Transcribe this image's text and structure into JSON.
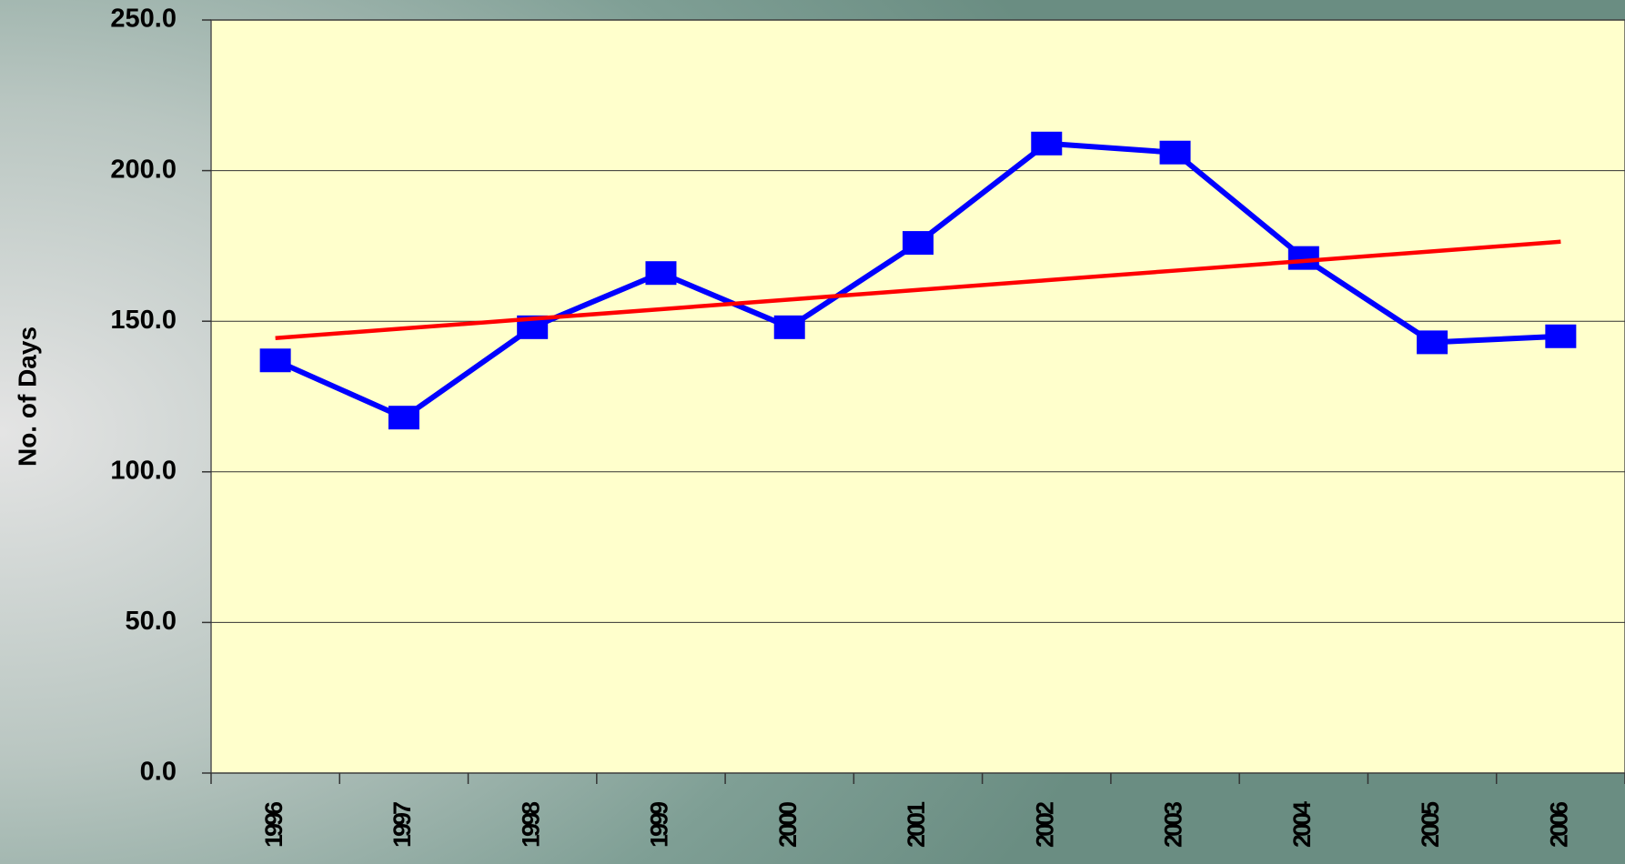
{
  "chart_data": {
    "type": "line",
    "y_label": "No. of Days",
    "categories": [
      "1996",
      "1997",
      "1998",
      "1999",
      "2000",
      "2001",
      "2002",
      "2003",
      "2004",
      "2005",
      "2006"
    ],
    "series": [
      {
        "color": "#0000ff",
        "marker": "square",
        "values": [
          137,
          118,
          148,
          166,
          148,
          176,
          209,
          206,
          171,
          143,
          145
        ]
      },
      {
        "color": "#ff0000",
        "marker": "none",
        "values": [
          144.4,
          147.6,
          150.8,
          154.0,
          157.2,
          160.4,
          163.6,
          166.8,
          170.0,
          173.2,
          176.4
        ]
      }
    ],
    "ylim": [
      0,
      250
    ],
    "yticks": [
      {
        "value": 0,
        "label": "0.0"
      },
      {
        "value": 50,
        "label": "50.0"
      },
      {
        "value": 100,
        "label": "100.0"
      },
      {
        "value": 150,
        "label": "150.0"
      },
      {
        "value": 200,
        "label": "200.0"
      },
      {
        "value": 250,
        "label": "250.0"
      }
    ],
    "grid": true,
    "plot_background": "#ffffcc"
  }
}
